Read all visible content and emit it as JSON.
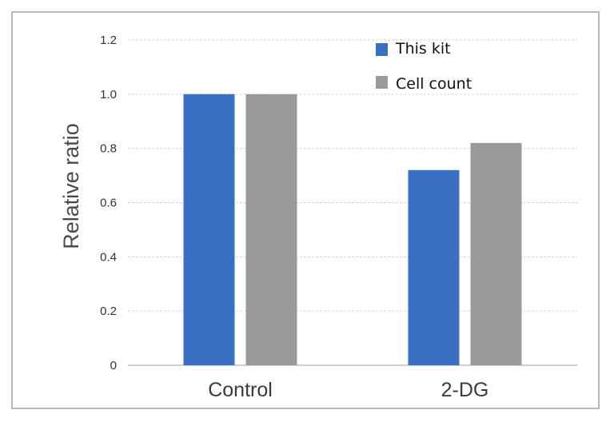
{
  "chart_data": {
    "type": "bar",
    "title": "",
    "xlabel": "",
    "ylabel": "Relative ratio",
    "categories": [
      "Control",
      "2-DG"
    ],
    "series": [
      {
        "name": "This kit",
        "values": [
          1.0,
          0.72
        ],
        "color": "#3a6fc4"
      },
      {
        "name": "Cell count",
        "values": [
          1.0,
          0.82
        ],
        "color": "#9a9a9a"
      }
    ],
    "ylim": [
      0,
      1.2
    ],
    "yticks": [
      {
        "value": 0,
        "label": "0"
      },
      {
        "value": 0.2,
        "label": "0.2"
      },
      {
        "value": 0.4,
        "label": "0.4"
      },
      {
        "value": 0.6,
        "label": "0.6"
      },
      {
        "value": 0.8,
        "label": "0.8"
      },
      {
        "value": 1.0,
        "label": "1.0"
      },
      {
        "value": 1.2,
        "label": "1.2"
      }
    ],
    "grid": true,
    "legend_position": "top-right"
  }
}
